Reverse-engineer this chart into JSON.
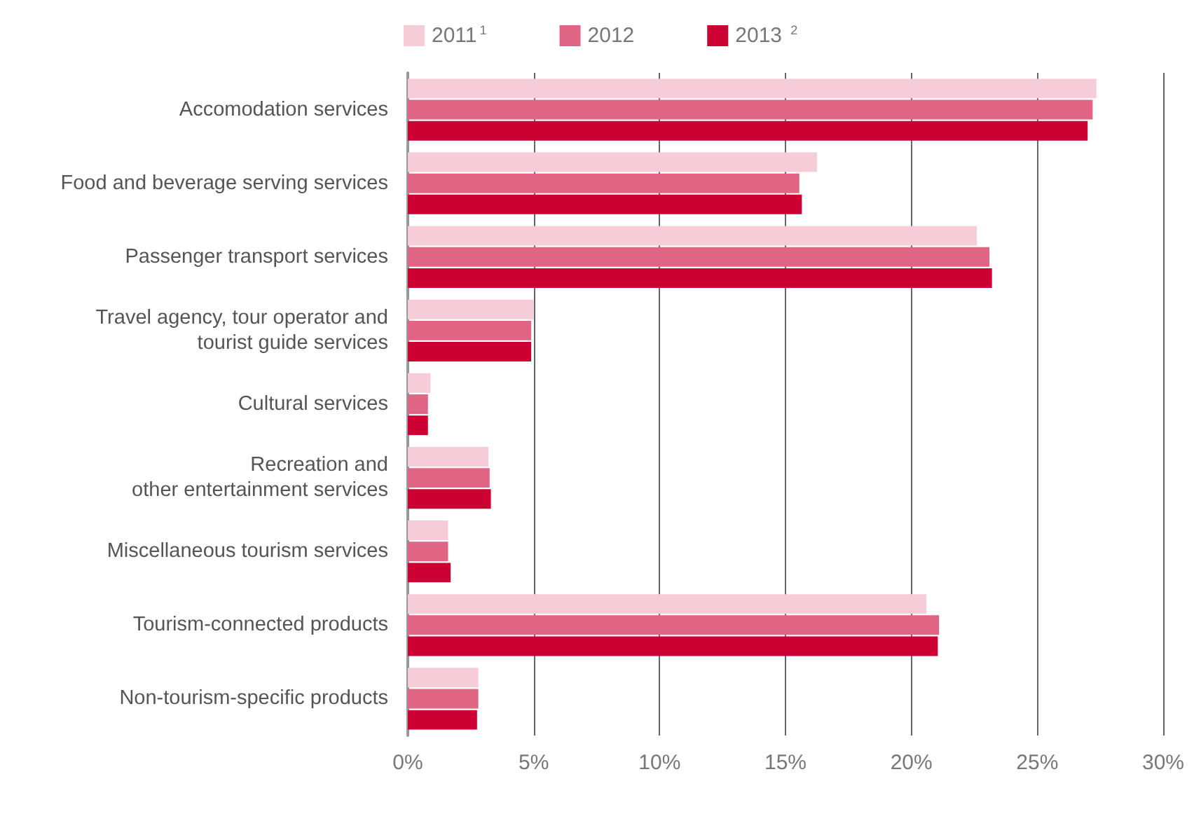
{
  "chart_data": {
    "type": "bar",
    "orientation": "horizontal",
    "categories": [
      "Accomodation services",
      "Food and beverage serving services",
      "Passenger transport services",
      "Travel agency, tour operator and\ntourist guide services",
      "Cultural services",
      "Recreation and\nother entertainment services",
      "Miscellaneous tourism services",
      "Tourism-connected products",
      "Non-tourism-specific products"
    ],
    "series": [
      {
        "name": "2011$^{1}$",
        "color": "#f5ccd8",
        "values": [
          27.35,
          16.25,
          22.6,
          5.0,
          0.9,
          3.2,
          1.6,
          20.6,
          2.8
        ]
      },
      {
        "name": "2012",
        "color": "#e06585",
        "values": [
          27.2,
          15.55,
          23.1,
          4.9,
          0.8,
          3.25,
          1.6,
          21.1,
          2.8
        ]
      },
      {
        "name": "2013 $^{2}$",
        "color": "#cc0033",
        "values": [
          27.0,
          15.65,
          23.2,
          4.9,
          0.8,
          3.3,
          1.7,
          21.05,
          2.75
        ]
      }
    ],
    "xlim": [
      0,
      30
    ],
    "xticks": [
      {
        "value": 0,
        "label": "0%"
      },
      {
        "value": 5,
        "label": "5%"
      },
      {
        "value": 10,
        "label": "10%"
      },
      {
        "value": 15,
        "label": "15%"
      },
      {
        "value": 20,
        "label": "20%"
      },
      {
        "value": 25,
        "label": "25%"
      },
      {
        "value": 30,
        "label": "30%"
      }
    ],
    "grid": "x",
    "legend": "top"
  }
}
